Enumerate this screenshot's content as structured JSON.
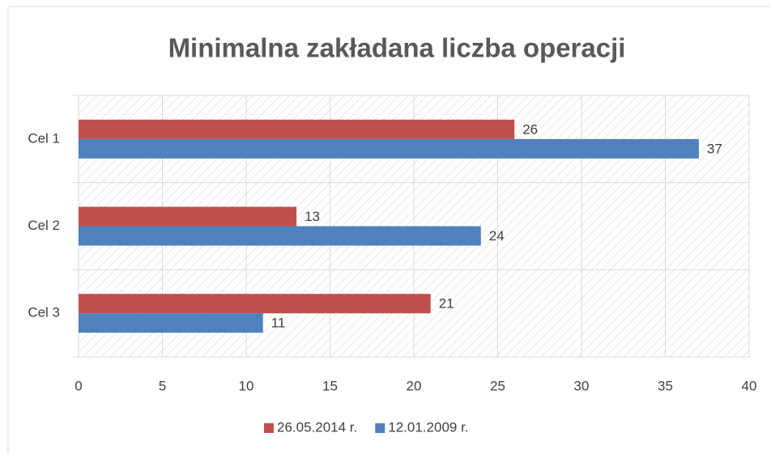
{
  "chart_data": {
    "type": "bar",
    "orientation": "horizontal",
    "title": "Minimalna zakładana liczba operacji",
    "categories": [
      "Cel 1",
      "Cel 2",
      "Cel 3"
    ],
    "series": [
      {
        "name": "26.05.2014 r.",
        "color": "#c0504d",
        "values": [
          26,
          13,
          21
        ]
      },
      {
        "name": "12.01.2009 r.",
        "color": "#4f81bd",
        "values": [
          37,
          24,
          11
        ]
      }
    ],
    "xlim": [
      0,
      40
    ],
    "xticks": [
      0,
      5,
      10,
      15,
      20,
      25,
      30,
      35,
      40
    ],
    "grid": true,
    "legend": "bottom"
  }
}
